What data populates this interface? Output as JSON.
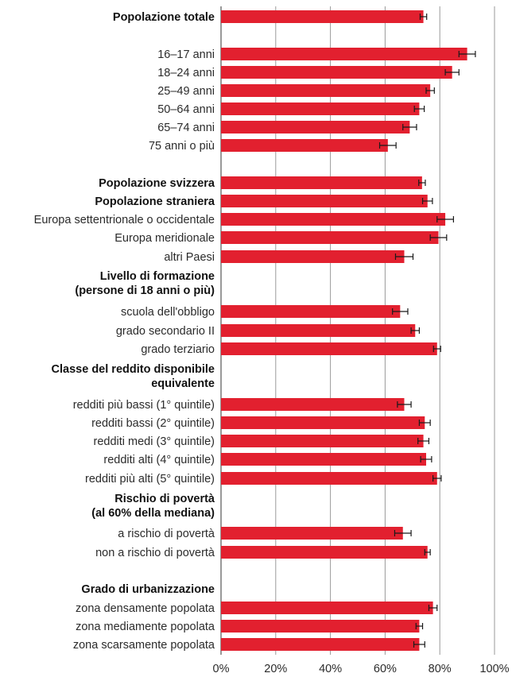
{
  "chart_data": {
    "type": "bar",
    "orientation": "horizontal",
    "xlim": [
      0,
      100
    ],
    "ticks": [
      "0%",
      "20%",
      "40%",
      "60%",
      "80%",
      "100%"
    ],
    "grid": true,
    "bar_color": "#e2202f",
    "rows": [
      {
        "label": "Popolazione totale",
        "bold": true,
        "value": 74,
        "err": 1.2
      },
      {
        "label": "16–17 anni",
        "value": 90,
        "err": 3.0
      },
      {
        "label": "18–24 anni",
        "value": 84.5,
        "err": 2.5
      },
      {
        "label": "25–49 anni",
        "value": 76.5,
        "err": 1.5
      },
      {
        "label": "50–64 anni",
        "value": 72.5,
        "err": 1.8
      },
      {
        "label": "65–74 anni",
        "value": 69,
        "err": 2.5
      },
      {
        "label": "75 anni o più",
        "value": 61,
        "err": 3.0
      },
      {
        "label": "Popolazione svizzera",
        "bold": true,
        "value": 73.5,
        "err": 1.2
      },
      {
        "label": "Popolazione straniera",
        "bold": true,
        "value": 75.5,
        "err": 1.8
      },
      {
        "label": "Europa settentrionale o occidentale",
        "value": 82,
        "err": 3.0
      },
      {
        "label": "Europa meridionale",
        "value": 79.5,
        "err": 3.0
      },
      {
        "label": "altri Paesi",
        "value": 67,
        "err": 3.2
      },
      {
        "label": "Livello di formazione",
        "label2": "(persone di 18 anni o più)",
        "bold": true
      },
      {
        "label": "scuola dell'obbligo",
        "value": 65.5,
        "err": 2.8
      },
      {
        "label": "grado secondario II",
        "value": 71,
        "err": 1.5
      },
      {
        "label": "grado terziario",
        "value": 79,
        "err": 1.3
      },
      {
        "label": "Classe del reddito disponibile",
        "label2": "equivalente",
        "bold": true
      },
      {
        "label": "redditi più bassi (1° quintile)",
        "value": 67,
        "err": 2.5
      },
      {
        "label": "redditi bassi (2° quintile)",
        "value": 74.5,
        "err": 2.0
      },
      {
        "label": "redditi medi (3° quintile)",
        "value": 74,
        "err": 2.0
      },
      {
        "label": "redditi alti (4° quintile)",
        "value": 75,
        "err": 2.0
      },
      {
        "label": "redditi più alti (5° quintile)",
        "value": 79,
        "err": 1.5
      },
      {
        "label": "Rischio di povertà",
        "label2": "(al 60% della mediana)",
        "bold": true
      },
      {
        "label": "a rischio di povertà",
        "value": 66.5,
        "err": 3.0
      },
      {
        "label": "non a rischio di povertà",
        "value": 75.5,
        "err": 1.0
      },
      {
        "label": "Grado di urbanizzazione",
        "bold": true
      },
      {
        "label": "zona densamente popolata",
        "value": 77.5,
        "err": 1.5
      },
      {
        "label": "zona mediamente popolata",
        "value": 72.5,
        "err": 1.2
      },
      {
        "label": "zona scarsamente popolata",
        "value": 72.5,
        "err": 2.0
      }
    ]
  }
}
